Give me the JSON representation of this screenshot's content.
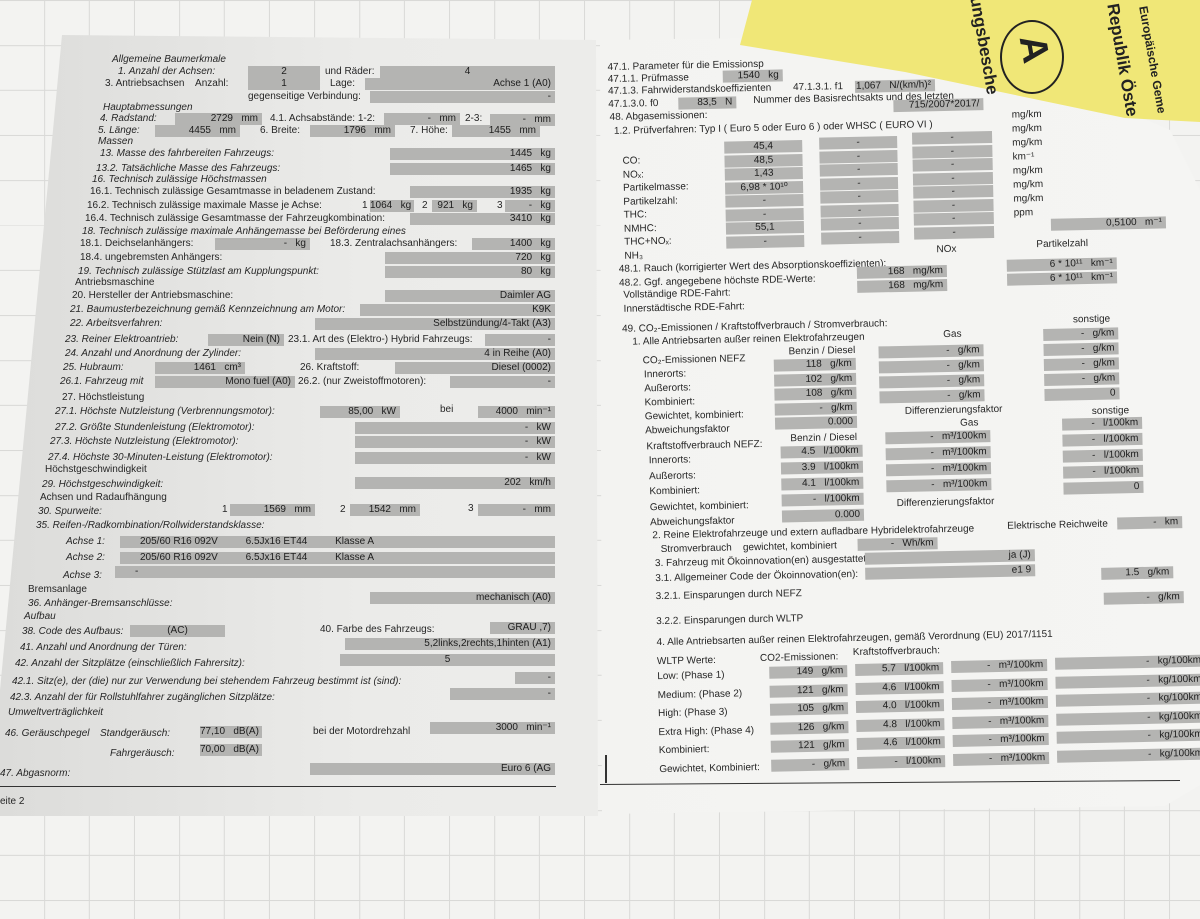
{
  "left": {
    "h_baumerkmale": "Allgemeine Baumerkmale",
    "achsen_label": "1. Anzahl der Achsen:",
    "achsen": "2",
    "raeder_label": "und Räder:",
    "raeder": "4",
    "antrieb_label": "3. Antriebsachsen    Anzahl:",
    "antrieb": "1",
    "lage_label": "Lage:",
    "lage": "Achse 1 (A0)",
    "verb_label": "gegenseitige Verbindung:",
    "verb": "-",
    "h_haupt": "Hauptabmessungen",
    "radstand_label": "4. Radstand:",
    "radstand": "2729   mm",
    "achsab_label": "4.1. Achsabstände: 1-2:",
    "achsab12": "-   mm",
    "achsab23_label": "2-3:",
    "achsab23": "-   mm",
    "laenge_label": "5. Länge:",
    "laenge": "4455   mm",
    "breite_label": "6. Breite:",
    "breite": "1796   mm",
    "hoehe_label": "7. Höhe:",
    "hoehe": "1455   mm",
    "h_massen": "Massen",
    "m13_label": "13. Masse des fahrbereiten Fahrzeugs:",
    "m13": "1445   kg",
    "m132_label": "13.2. Tatsächliche Masse des Fahrzeugs:",
    "m132": "1465   kg",
    "m16_label": "16. Technisch zulässige Höchstmassen",
    "m161_label": "16.1. Technisch zulässige Gesamtmasse in beladenem Zustand:",
    "m161": "1935   kg",
    "m162_label": "16.2. Technisch zulässige maximale Masse je Achse:",
    "a1": "1",
    "m162_1": "1064   kg",
    "a2": "2",
    "m162_2": "921   kg",
    "a3": "3",
    "m162_3": "-   kg",
    "m164_label": "16.4. Technisch zulässige Gesamtmasse der Fahrzeugkombination:",
    "m164": "3410   kg",
    "m18_label": "18. Technisch zulässige maximale Anhängemasse bei Beförderung eines",
    "m181_label": "18.1. Deichselanhängers:",
    "m181": "-   kg",
    "m183_label": "18.3. Zentralachsanhängers:",
    "m183": "1400   kg",
    "m184_label": "18.4. ungebremsten Anhängers:",
    "m184": "720   kg",
    "m19_label": "19. Technisch zulässige Stützlast am Kupplungspunkt:",
    "m19": "80   kg",
    "h_antrieb": "Antriebsmaschine",
    "hersteller_label": "20. Hersteller der Antriebsmaschine:",
    "hersteller": "Daimler AG",
    "baumuster_label": "21. Baumusterbezeichnung gemäß Kennzeichnung am Motor:",
    "baumuster": "K9K",
    "arbeit_label": "22. Arbeitsverfahren:",
    "arbeit": "Selbstzündung/4-Takt (A3)",
    "elektro_label": "23. Reiner Elektroantrieb:",
    "elektro": "Nein (N)",
    "hybrid_label": "23.1. Art des (Elektro-) Hybrid Fahrzeugs:",
    "hybrid": "-",
    "zyl_label": "24. Anzahl und Anordnung der Zylinder:",
    "zyl": "4 in Reihe (A0)",
    "hubraum_label": "25. Hubraum:",
    "hubraum": "1461   cm³",
    "kraftstoff_label": "26. Kraftstoff:",
    "kraftstoff": "Diesel (0002)",
    "fzmit_label": "26.1. Fahrzeug mit",
    "fzmit": "Mono fuel (A0)",
    "zweistoff_label": "26.2. (nur Zweistoffmotoren):",
    "zweistoff": "-",
    "h27_label": "27. Höchstleistung",
    "p271_label": "27.1. Höchste Nutzleistung (Verbrennungsmotor):",
    "p271": "85,00   kW",
    "bei": "bei",
    "p271_rpm": "4000   min⁻¹",
    "p272_label": "27.2. Größte Stundenleistung (Elektromotor):",
    "p272": "-   kW",
    "p273_label": "27.3. Höchste Nutzleistung (Elektromotor):",
    "p273": "-   kW",
    "p274_label": "27.4. Höchste 30-Minuten-Leistung (Elektromotor):",
    "p274": "-   kW",
    "h_vmax": "Höchstgeschwindigkeit",
    "vmax_label": "29. Höchstgeschwindigkeit:",
    "vmax": "202   km/h",
    "h_achsen": "Achsen und Radaufhängung",
    "spur_label": "30. Spurweite:",
    "s1": "1",
    "spur1": "1569   mm",
    "s2": "2",
    "spur2": "1542   mm",
    "s3": "3",
    "spur3": "-   mm",
    "reifen_label": "35. Reifen-/Radkombination/Rollwiderstandsklasse:",
    "achse1_label": "Achse 1:",
    "achse1": "205/60 R16 092V          6.5Jx16 ET44          Klasse A",
    "achse2_label": "Achse 2:",
    "achse2": "205/60 R16 092V          6.5Jx16 ET44          Klasse A",
    "achse3_label": "Achse 3:",
    "achse3": "-",
    "h_brems": "Bremsanlage",
    "brems_label": "36. Anhänger-Bremsanschlüsse:",
    "brems": "mechanisch (A0)",
    "h_aufbau": "Aufbau",
    "code_label": "38. Code des Aufbaus:",
    "code": "(AC)",
    "farbe_label": "40. Farbe des Fahrzeugs:",
    "farbe": "GRAU ,7)",
    "tueren_label": "41. Anzahl und Anordnung der Türen:",
    "tueren": "5,2links,2rechts,1hinten (A1)",
    "sitze_label": "42. Anzahl der Sitzplätze (einschließlich Fahrersitz):",
    "sitze": "5",
    "sitz421_label": "42.1. Sitz(e), der (die) nur zur Verwendung bei stehendem Fahrzeug bestimmt ist (sind):",
    "sitz421": "-",
    "sitz423_label": "42.3. Anzahl der für Rollstuhlfahrer zugänglichen Sitzplätze:",
    "sitz423": "-",
    "h_umwelt": "Umweltverträglichkeit",
    "geraeusch_label": "46. Geräuschpegel",
    "stand_label": "Standgeräusch:",
    "stand": "77,10   dB(A)",
    "drehzahl_label": "bei der Motordrehzahl",
    "drehzahl": "3000   min⁻¹",
    "fahr_label": "Fahrgeräusch:",
    "fahr": "70,00   dB(A)",
    "abgas_label": "47. Abgasnorm:",
    "abgas": "Euro 6 (AG",
    "page_footer": "eite 2"
  },
  "right": {
    "p471_label": "47.1. Parameter für die Emissionsp",
    "p4711_label": "47.1.1. Prüfmasse",
    "p4711": "1540   kg",
    "p4713_label": "47.1.3. Fahrwiderstandskoeffizienten",
    "p47131_label": "47.1.3.1. f1",
    "p47131": "1,067   N/(km/h)²",
    "p47130_label": "47.1.3.0. f0",
    "p47130": "83,5   N",
    "basis_label": "Nummer des Basisrechtsakts und des letzten",
    "abgasem_label": "48. Abgasemissionen:",
    "basis": "715/2007*2017/",
    "pruef_label": "1.2. Prüfverfahren: Typ I ( Euro 5 oder Euro 6 ) oder WHSC ( EURO VI )",
    "em_labels": [
      "CO:",
      "NOₓ:",
      "Partikelmasse:",
      "Partikelzahl:",
      "THC:",
      "NMHC:",
      "THC+NOₓ:",
      "NH₃"
    ],
    "em_col1": [
      "45,4",
      "48,5",
      "1,43",
      "6,98 * 10¹⁰",
      "-",
      "-",
      "55,1",
      "-"
    ],
    "em_col2": [
      "-",
      "-",
      "-",
      "-",
      "-",
      "-",
      "-",
      "-"
    ],
    "em_col3": [
      "-",
      "-",
      "-",
      "-",
      "-",
      "-",
      "-",
      "-"
    ],
    "em_units": [
      "mg/km",
      "mg/km",
      "mg/km",
      "km⁻¹",
      "mg/km",
      "mg/km",
      "mg/km",
      "ppm"
    ],
    "rauch": "0,5100   m⁻¹",
    "rauch_label": "48.1. Rauch (korrigierter Wert des Absorptionskoeffizienten):",
    "nox_head": "NOx",
    "pz_head": "Partikelzahl",
    "rde_label": "48.2. Ggf. angegebene höchste RDE-Werte:",
    "rde_full_label": "Vollständige RDE-Fahrt:",
    "rde_city_label": "Innerstädtische RDE-Fahrt:",
    "rde_nox1": "168   mg/km",
    "rde_pz1": "6 * 10¹¹   km⁻¹",
    "rde_nox2": "168   mg/km",
    "rde_pz2": "6 * 10¹¹   km⁻¹",
    "co2_title": "49. CO₂-Emissionen / Kraftstoffverbrauch / Stromverbrauch:",
    "alle_label": "1. Alle Antriebsarten außer reinen Elektrofahrzeugen",
    "benzin_head": "Benzin / Diesel",
    "gas_head": "Gas",
    "sonst_head": "sonstige",
    "co2_nefz_label": "CO₂-Emissionen NEFZ",
    "row_labels": [
      "Innerorts:",
      "Außerorts:",
      "Kombiniert:",
      "Gewichtet, kombiniert:",
      "Abweichungsfaktor"
    ],
    "co2_bd": [
      "118   g/km",
      "102   g/km",
      "108   g/km",
      "-   g/km",
      "0.000"
    ],
    "co2_gas": [
      "-   g/km",
      "-   g/km",
      "-   g/km",
      "-   g/km"
    ],
    "co2_sonst": [
      "-   g/km",
      "-   g/km",
      "-   g/km",
      "-   g/km",
      "0"
    ],
    "diff_label": "Differenzierungsfaktor",
    "kv_nefz_label": "Kraftstoffverbrauch NEFZ:",
    "kv_bd": [
      "4.5   l/100km",
      "3.9   l/100km",
      "4.1   l/100km",
      "-   l/100km",
      "0.000"
    ],
    "kv_gas": [
      "-   m³/100km",
      "-   m³/100km",
      "-   m³/100km",
      "-   m³/100km"
    ],
    "kv_sonst": [
      "-   l/100km",
      "-   l/100km",
      "-   l/100km",
      "-   l/100km",
      "0"
    ],
    "elektro_label": "2. Reine Elektrofahrzeuge und extern aufladbare Hybridelektrofahrzeuge",
    "reichweite_label": "Elektrische Reichweite",
    "reichweite": "-   km",
    "strom_label": "Stromverbrauch    gewichtet, kombiniert",
    "strom": "-   Wh/km",
    "oeko_label": "3. Fahrzeug mit Ökoinnovation(en) ausgestattet:",
    "oeko": "ja (J)",
    "oekocode_label": "3.1. Allgemeiner Code der Ökoinnovation(en):",
    "oekocode": "e1 9",
    "nefz_einsp_label": "3.2.1. Einsparungen durch NEFZ",
    "nefz_einsp": "1.5   g/km",
    "wltp_einsp_label": "3.2.2. Einsparungen durch WLTP",
    "wltp_einsp": "-   g/km",
    "wltp_title": "4. Alle Antriebsarten außer reinen Elektrofahrzeugen, gemäß Verordnung (EU) 2017/1151",
    "wltp_label": "WLTP Werte:",
    "wltp_co2_head": "CO2-Emissionen:",
    "wltp_kv_head": "Kraftstoffverbrauch:",
    "wltp_rows": [
      {
        "label": "Low: (Phase 1)",
        "co2": "149   g/km",
        "fuel": "5.7   l/100km",
        "gas": "-   m³/100km",
        "kg": "-   kg/100km"
      },
      {
        "label": "Medium: (Phase 2)",
        "co2": "121   g/km",
        "fuel": "4.6   l/100km",
        "gas": "-   m³/100km",
        "kg": "-   kg/100km"
      },
      {
        "label": "High: (Phase 3)",
        "co2": "105   g/km",
        "fuel": "4.0   l/100km",
        "gas": "-   m³/100km",
        "kg": "-   kg/100km"
      },
      {
        "label": "Extra High: (Phase 4)",
        "co2": "126   g/km",
        "fuel": "4.8   l/100km",
        "gas": "-   m³/100km",
        "kg": "-   kg/100km"
      },
      {
        "label": "Kombiniert:",
        "co2": "121   g/km",
        "fuel": "4.6   l/100km",
        "gas": "-   m³/100km",
        "kg": "-   kg/100km"
      },
      {
        "label": "Gewichtet, Kombiniert:",
        "co2": "-   g/km",
        "fuel": "-   l/100km",
        "gas": "-   m³/100km",
        "kg": "-   kg/100km"
      }
    ]
  },
  "booklet": {
    "line1": "Europäische Geme",
    "line2": "Republik Öste",
    "letter": "A",
    "line3": "ungsbesche",
    "color": "#f0e777"
  }
}
